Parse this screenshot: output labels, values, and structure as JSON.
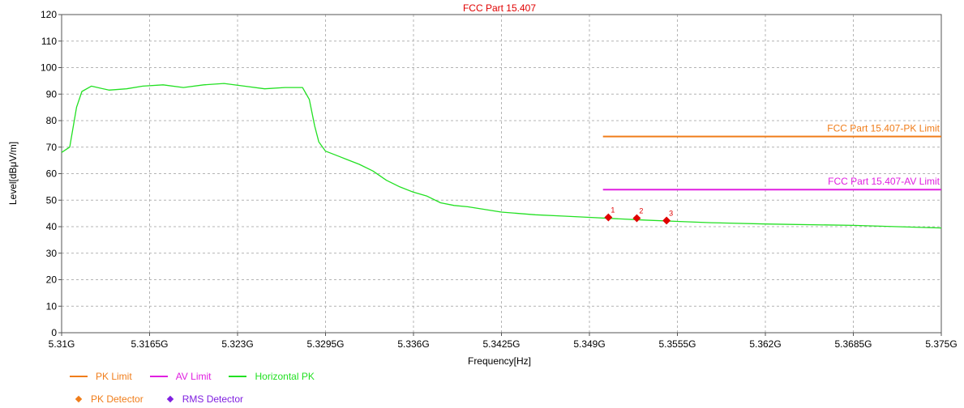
{
  "chart_data": {
    "type": "line",
    "title": "FCC Part 15.407",
    "xlabel": "Frequency[Hz]",
    "ylabel": "Level[dBμV/m]",
    "xlim": [
      5.31,
      5.375
    ],
    "ylim": [
      0,
      120
    ],
    "x_tick_labels": [
      "5.31G",
      "5.3165G",
      "5.323G",
      "5.3295G",
      "5.336G",
      "5.3425G",
      "5.349G",
      "5.3555G",
      "5.362G",
      "5.3685G",
      "5.375G"
    ],
    "y_tick_labels": [
      "0",
      "10",
      "20",
      "30",
      "40",
      "50",
      "60",
      "70",
      "80",
      "90",
      "100",
      "110",
      "120"
    ],
    "grid": true,
    "series": [
      {
        "name": "Horizontal PK",
        "color": "#22e022",
        "x": [
          5.31,
          5.3106,
          5.3111,
          5.3115,
          5.3122,
          5.3135,
          5.3148,
          5.316,
          5.3175,
          5.319,
          5.3205,
          5.322,
          5.3235,
          5.325,
          5.3265,
          5.3278,
          5.3283,
          5.3287,
          5.329,
          5.3295,
          5.3305,
          5.331,
          5.332,
          5.333,
          5.334,
          5.335,
          5.336,
          5.337,
          5.338,
          5.339,
          5.34,
          5.3425,
          5.345,
          5.347,
          5.349,
          5.351,
          5.353,
          5.3555,
          5.358,
          5.362,
          5.3685,
          5.375
        ],
        "y": [
          68,
          70,
          85,
          91,
          93,
          91.5,
          92,
          93,
          93.5,
          92.5,
          93.5,
          94,
          93,
          92,
          92.5,
          92.5,
          88,
          78,
          72,
          68.5,
          66.5,
          65.5,
          63.5,
          61,
          57.5,
          55,
          53,
          51.5,
          49,
          48,
          47.5,
          45.5,
          44.5,
          44,
          43.5,
          43,
          42.5,
          42,
          41.5,
          41,
          40.5,
          39.5
        ]
      },
      {
        "name": "PK Limit",
        "color": "#f07d1a",
        "x": [
          5.35,
          5.375
        ],
        "y": [
          74,
          74
        ],
        "label": "FCC Part 15.407-PK Limit"
      },
      {
        "name": "AV Limit",
        "color": "#e020e0",
        "x": [
          5.35,
          5.375
        ],
        "y": [
          54,
          54
        ],
        "label": "FCC Part 15.407-AV Limit"
      }
    ],
    "markers": [
      {
        "label": "1",
        "x": 5.3504,
        "y": 43.5,
        "color": "#e00000"
      },
      {
        "label": "2",
        "x": 5.3525,
        "y": 43.2,
        "color": "#e00000"
      },
      {
        "label": "3",
        "x": 5.3547,
        "y": 42.3,
        "color": "#e00000"
      }
    ],
    "legend": [
      {
        "label": "PK Limit",
        "kind": "line",
        "color": "#f07d1a"
      },
      {
        "label": "AV Limit",
        "kind": "line",
        "color": "#e020e0"
      },
      {
        "label": "Horizontal PK",
        "kind": "line",
        "color": "#22e022"
      },
      {
        "label": "PK Detector",
        "kind": "marker",
        "color": "#f07d1a"
      },
      {
        "label": "RMS Detector",
        "kind": "marker",
        "color": "#8020e0"
      }
    ]
  }
}
